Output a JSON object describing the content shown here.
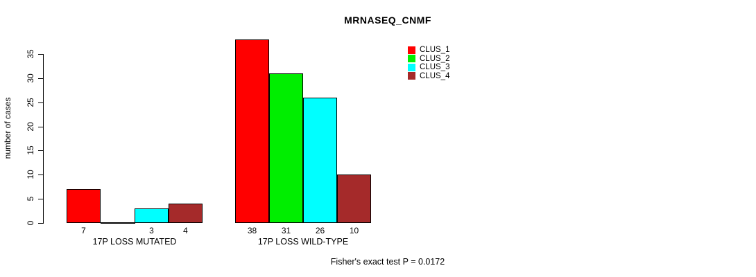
{
  "title": "MRNASEQ_CNMF",
  "annotation": "Fisher's exact test P = 0.0172",
  "chart_data": {
    "type": "bar",
    "title": "MRNASEQ_CNMF",
    "xlabel": "",
    "ylabel": "number of cases",
    "categories": [
      "17P LOSS MUTATED",
      "17P LOSS WILD-TYPE"
    ],
    "series": [
      {
        "name": "CLUS_1",
        "color": "#FF0000",
        "values": [
          7,
          38
        ]
      },
      {
        "name": "CLUS_2",
        "color": "#00EE00",
        "values": [
          0,
          31
        ]
      },
      {
        "name": "CLUS_3",
        "color": "#00FFFF",
        "values": [
          3,
          26
        ]
      },
      {
        "name": "CLUS_4",
        "color": "#A52A2A",
        "values": [
          4,
          10
        ]
      }
    ],
    "value_labels": [
      [
        "7",
        null,
        "3",
        "4"
      ],
      [
        "38",
        "31",
        "26",
        "10"
      ]
    ],
    "yticks": [
      0,
      5,
      10,
      15,
      20,
      25,
      30,
      35
    ],
    "ylim": [
      0,
      38
    ],
    "grid": false,
    "legend": {
      "position": "top-right-inside",
      "entries": [
        "CLUS_1",
        "CLUS_2",
        "CLUS_3",
        "CLUS_4"
      ],
      "colors": [
        "#FF0000",
        "#00EE00",
        "#00FFFF",
        "#A52A2A"
      ]
    },
    "annotation": "Fisher's exact test P = 0.0172",
    "zero_bars_drawn_as_baseline_segment": true
  }
}
